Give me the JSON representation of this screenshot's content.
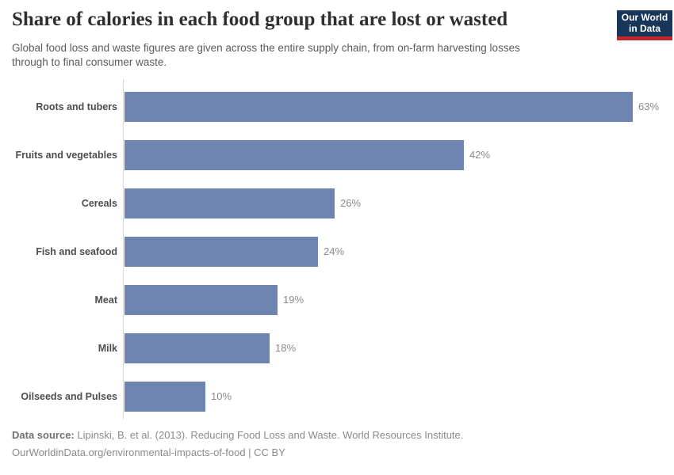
{
  "header": {
    "title": "Share of calories in each food group that are lost or wasted",
    "subtitle_line1": "Global food loss and waste figures are given across the entire supply chain, from on-farm harvesting losses",
    "subtitle_line2": "through to final consumer waste.",
    "logo": {
      "line1": "Our World",
      "line2": "in Data",
      "bg_color": "#18355a",
      "accent_color": "#c0272d"
    }
  },
  "chart_data": {
    "type": "bar",
    "orientation": "horizontal",
    "title": "Share of calories in each food group that are lost or wasted",
    "categories": [
      "Roots and tubers",
      "Fruits and vegetables",
      "Cereals",
      "Fish and seafood",
      "Meat",
      "Milk",
      "Oilseeds and Pulses"
    ],
    "values": [
      63,
      42,
      26,
      24,
      19,
      18,
      10
    ],
    "value_labels": [
      "63%",
      "42%",
      "26%",
      "24%",
      "19%",
      "18%",
      "10%"
    ],
    "unit": "%",
    "xlim": [
      0,
      67
    ],
    "grid": false,
    "legend": "none",
    "bar_color": "#6e85b2",
    "axis_line_color": "#d9d9d9"
  },
  "footer": {
    "source_label": "Data source:",
    "source_text": " Lipinski, B. et al. (2013). Reducing Food Loss and Waste. World Resources Institute.",
    "license_url": "OurWorldinData.org/environmental-impacts-of-food",
    "license_separator": " | ",
    "license_name": "CC BY"
  }
}
